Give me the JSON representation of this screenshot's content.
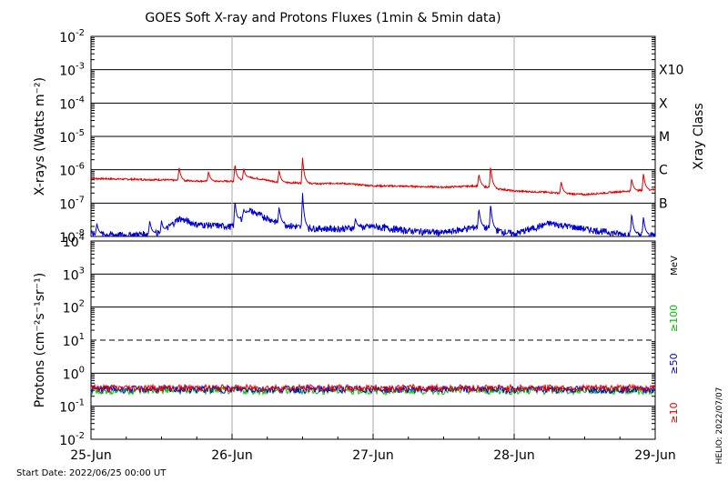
{
  "chart_data": [
    {
      "type": "line",
      "title": "GOES Soft X-ray and Protons Fluxes   (1min & 5min data)",
      "ylabel": "X-rays (Watts m⁻²)",
      "y_scale": "log",
      "ylim": [
        "1e-8",
        "1e-2"
      ],
      "y_ticks": [
        {
          "base": "10",
          "exp": "-2"
        },
        {
          "base": "10",
          "exp": "-3"
        },
        {
          "base": "10",
          "exp": "-4"
        },
        {
          "base": "10",
          "exp": "-5"
        },
        {
          "base": "10",
          "exp": "-6"
        },
        {
          "base": "10",
          "exp": "-7"
        },
        {
          "base": "10",
          "exp": "-8"
        }
      ],
      "right_axis_label": "Xray Class",
      "class_labels": [
        "X10",
        "X",
        "M",
        "C",
        "B"
      ],
      "x_ticks": [
        "25-Jun",
        "26-Jun",
        "27-Jun",
        "28-Jun",
        "29-Jun"
      ],
      "series": [
        {
          "color": "#e00000",
          "values": [
            "2022-06-25 00:00|5.5e-7",
            "2022-06-25 06:00|5.2e-7",
            "2022-06-25 12:00|5.0e-7",
            "2022-06-25 18:00|4.6e-7",
            "2022-06-26 00:00|4.5e-7",
            "2022-06-26 03:00|6.0e-7",
            "2022-06-26 08:00|4.2e-7",
            "2022-06-26 12:00|4.0e-7",
            "2022-06-26 15:00|3.8e-7",
            "2022-06-26 18:00|4.0e-7",
            "2022-06-27 00:00|3.3e-7",
            "2022-06-27 06:00|3.2e-7",
            "2022-06-27 12:00|3.0e-7",
            "2022-06-27 18:00|3.3e-7",
            "2022-06-28 00:00|2.3e-7",
            "2022-06-28 06:00|2.1e-7",
            "2022-06-28 12:00|1.8e-7",
            "2022-06-28 18:00|2.2e-7",
            "2022-06-29 00:00|2.6e-7"
          ],
          "peaks": [
            "2022-06-25 15:00|1.2e-6",
            "2022-06-25 20:00|9.0e-7",
            "2022-06-26 00:30|1.5e-6",
            "2022-06-26 02:00|1.1e-6",
            "2022-06-26 08:00|1.0e-6",
            "2022-06-26 12:00|2.3e-6",
            "2022-06-27 18:00|7.5e-7",
            "2022-06-27 20:00|1.3e-6",
            "2022-06-28 08:00|4.5e-7",
            "2022-06-28 20:00|5.5e-7",
            "2022-06-28 22:00|8.0e-7"
          ]
        },
        {
          "color": "#0000d0",
          "values": [
            "2022-06-25 00:00|1.2e-8",
            "2022-06-25 06:00|1.1e-8",
            "2022-06-25 12:00|1.3e-8",
            "2022-06-25 15:00|3.5e-8",
            "2022-06-25 18:00|2.3e-8",
            "2022-06-26 00:00|2.0e-8",
            "2022-06-26 03:00|6.0e-8",
            "2022-06-26 08:00|2.5e-8",
            "2022-06-26 12:00|1.8e-8",
            "2022-06-26 18:00|1.7e-8",
            "2022-06-27 00:00|2.0e-8",
            "2022-06-27 06:00|1.5e-8",
            "2022-06-27 12:00|1.3e-8",
            "2022-06-27 18:00|2.0e-8",
            "2022-06-28 00:00|1.2e-8",
            "2022-06-28 06:00|2.5e-8",
            "2022-06-28 12:00|1.7e-8",
            "2022-06-28 18:00|1.2e-8",
            "2022-06-29 00:00|1.1e-8"
          ],
          "peaks": [
            "2022-06-25 01:00|2.5e-8",
            "2022-06-25 10:00|3.0e-8",
            "2022-06-25 12:00|3.0e-8",
            "2022-06-26 00:30|1.2e-7",
            "2022-06-26 02:00|6.5e-8",
            "2022-06-26 08:00|8.0e-8",
            "2022-06-26 12:00|2.0e-7",
            "2022-06-26 21:00|3.5e-8",
            "2022-06-27 18:00|7.0e-8",
            "2022-06-27 20:00|1.0e-7",
            "2022-06-28 20:00|5.0e-8",
            "2022-06-28 22:00|4.0e-8"
          ]
        }
      ]
    },
    {
      "type": "line",
      "ylabel": "Protons (cm⁻²s⁻¹sr⁻¹)",
      "y_scale": "log",
      "ylim": [
        "1e-2",
        "1e4"
      ],
      "y_ticks": [
        {
          "base": "10",
          "exp": "4"
        },
        {
          "base": "10",
          "exp": "3"
        },
        {
          "base": "10",
          "exp": "2"
        },
        {
          "base": "10",
          "exp": "1"
        },
        {
          "base": "10",
          "exp": "0"
        },
        {
          "base": "10",
          "exp": "-1"
        },
        {
          "base": "10",
          "exp": "-2"
        }
      ],
      "threshold": "10",
      "right_axis_label": "MeV",
      "x_ticks": [
        "25-Jun",
        "26-Jun",
        "27-Jun",
        "28-Jun",
        "29-Jun"
      ],
      "series": [
        {
          "name": "≥10",
          "color": "#e00000",
          "level": "0.36"
        },
        {
          "name": "≥50",
          "color": "#0000d0",
          "level": "0.33"
        },
        {
          "name": "≥100",
          "color": "#00c000",
          "level": "0.30"
        }
      ]
    }
  ],
  "footer": {
    "start_date": "Start Date: 2022/06/25 00:00 UT",
    "credit": "HELIO: 2022/07/07"
  }
}
